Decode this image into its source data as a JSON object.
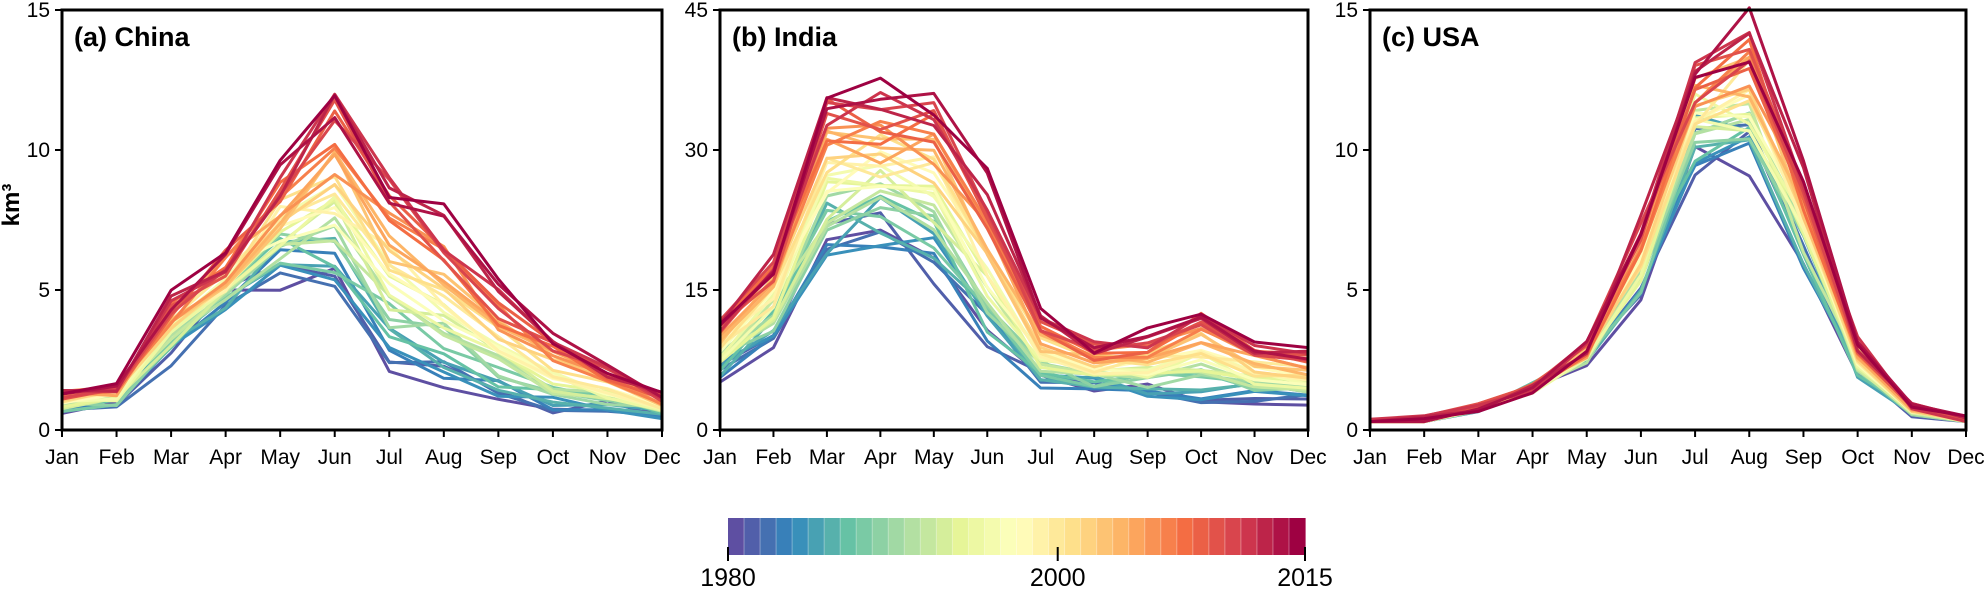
{
  "chart_data": [
    {
      "type": "line",
      "panel": "a",
      "title": "(a) China",
      "xlabel": "",
      "ylabel": "km³",
      "ylim": [
        0,
        15
      ],
      "yticks": [
        "0",
        "5",
        "10",
        "15"
      ],
      "categories": [
        "Jan",
        "Feb",
        "Mar",
        "Apr",
        "May",
        "Jun",
        "Jul",
        "Aug",
        "Sep",
        "Oct",
        "Nov",
        "Dec"
      ],
      "series_start_year": 1980,
      "series_end_year": 2015,
      "first_year_profile": [
        0.7,
        0.9,
        2.6,
        4.6,
        5.6,
        5.0,
        2.8,
        2.0,
        1.2,
        0.8,
        0.8,
        0.5
      ],
      "last_year_profile": [
        1.4,
        1.6,
        4.6,
        6.2,
        9.2,
        12.0,
        9.0,
        7.5,
        5.0,
        3.4,
        2.2,
        1.3
      ]
    },
    {
      "type": "line",
      "panel": "b",
      "title": "(b) India",
      "xlabel": "",
      "ylabel": "",
      "ylim": [
        0,
        45
      ],
      "yticks": [
        "0",
        "15",
        "30",
        "45"
      ],
      "categories": [
        "Jan",
        "Feb",
        "Mar",
        "Apr",
        "May",
        "Jun",
        "Jul",
        "Aug",
        "Sep",
        "Oct",
        "Nov",
        "Dec"
      ],
      "series_start_year": 1980,
      "series_end_year": 2015,
      "first_year_profile": [
        6.0,
        10.0,
        19.5,
        21.0,
        17.5,
        9.5,
        5.0,
        4.5,
        4.0,
        3.5,
        3.5,
        3.0
      ],
      "last_year_profile": [
        11.5,
        18.0,
        36.0,
        36.0,
        36.5,
        27.0,
        12.0,
        9.0,
        10.0,
        13.5,
        9.0,
        8.5
      ]
    },
    {
      "type": "line",
      "panel": "c",
      "title": "(c) USA",
      "xlabel": "",
      "ylabel": "",
      "ylim": [
        0,
        15
      ],
      "yticks": [
        "0",
        "5",
        "10",
        "15"
      ],
      "categories": [
        "Jan",
        "Feb",
        "Mar",
        "Apr",
        "May",
        "Jun",
        "Jul",
        "Aug",
        "Sep",
        "Oct",
        "Nov",
        "Dec"
      ],
      "series_start_year": 1980,
      "series_end_year": 2015,
      "first_year_profile": [
        0.2,
        0.3,
        0.8,
        1.5,
        2.5,
        5.0,
        10.0,
        9.8,
        6.0,
        2.0,
        0.6,
        0.2
      ],
      "last_year_profile": [
        0.3,
        0.4,
        0.8,
        1.5,
        3.0,
        7.5,
        12.8,
        14.2,
        9.3,
        3.2,
        0.9,
        0.4
      ]
    }
  ],
  "colorbar": {
    "ticks": [
      "1980",
      "2000",
      "2015"
    ],
    "tick_values": [
      1980,
      2000,
      2015
    ],
    "start_year": 1980,
    "end_year": 2015,
    "stops": [
      "#5e4fa2",
      "#3288bd",
      "#66c2a5",
      "#abdda4",
      "#e6f598",
      "#ffffbf",
      "#fee08b",
      "#fdae61",
      "#f46d43",
      "#d53e4f",
      "#9e0142"
    ]
  }
}
